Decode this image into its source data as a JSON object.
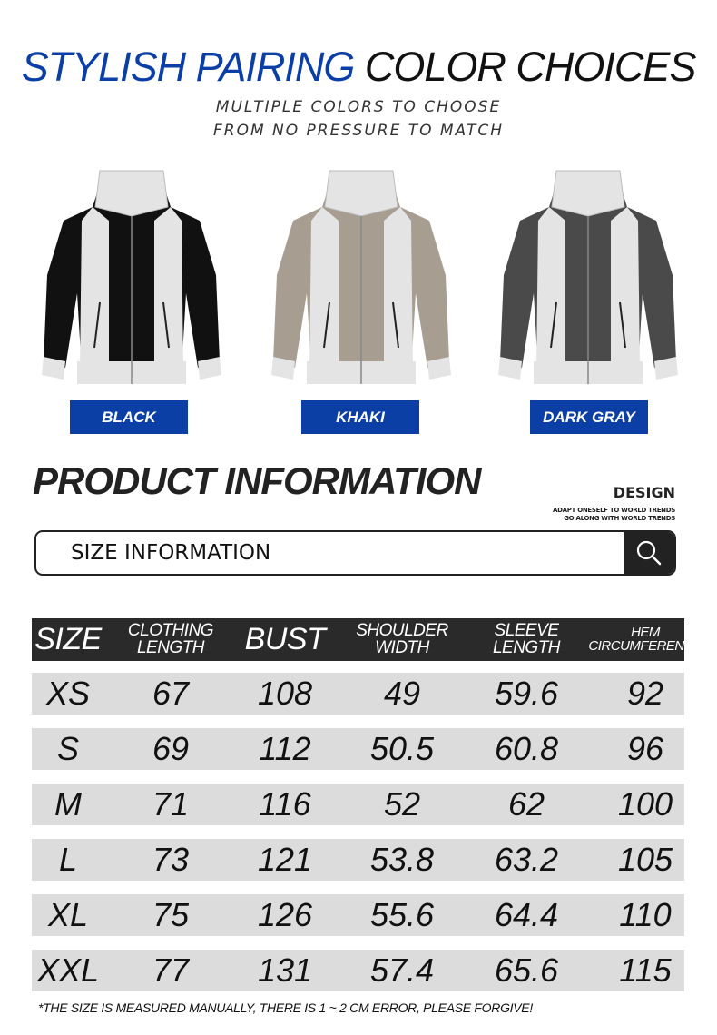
{
  "header": {
    "title_blue": "STYLISH PAIRING",
    "title_black": "COLOR CHOICES",
    "subtitle_line1": "MULTIPLE COLORS TO CHOOSE",
    "subtitle_line2": "FROM NO PRESSURE TO MATCH"
  },
  "colors": [
    {
      "label": "BLACK",
      "main": "#111111",
      "accent": "#e4e4e4"
    },
    {
      "label": "KHAKI",
      "main": "#a89d91",
      "accent": "#e4e4e4"
    },
    {
      "label": "DARK GRAY",
      "main": "#4a4a4a",
      "accent": "#e4e4e4"
    }
  ],
  "brand_color": "#0b3fa6",
  "product_info": {
    "title": "PRODUCT INFORMATION",
    "design": "DESIGN",
    "design_line1": "ADAPT ONESELF TO WORLD TRENDS",
    "design_line2": "GO ALONG WITH WORLD TRENDS"
  },
  "search": {
    "label": "SIZE INFORMATION",
    "icon": "search-icon"
  },
  "table": {
    "headers": [
      [
        "SIZE"
      ],
      [
        "CLOTHING",
        "LENGTH"
      ],
      [
        "BUST"
      ],
      [
        "SHOULDER",
        "WIDTH"
      ],
      [
        "SLEEVE",
        "LENGTH"
      ],
      [
        "HEM",
        "CIRCUMFERENCE"
      ]
    ],
    "rows": [
      [
        "XS",
        "67",
        "108",
        "49",
        "59.6",
        "92"
      ],
      [
        "S",
        "69",
        "112",
        "50.5",
        "60.8",
        "96"
      ],
      [
        "M",
        "71",
        "116",
        "52",
        "62",
        "100"
      ],
      [
        "L",
        "73",
        "121",
        "53.8",
        "63.2",
        "105"
      ],
      [
        "XL",
        "75",
        "126",
        "55.6",
        "64.4",
        "110"
      ],
      [
        "XXL",
        "77",
        "131",
        "57.4",
        "65.6",
        "115"
      ]
    ]
  },
  "footnote": "*THE SIZE IS MEASURED MANUALLY, THERE IS 1 ~ 2 CM ERROR, PLEASE FORGIVE!"
}
